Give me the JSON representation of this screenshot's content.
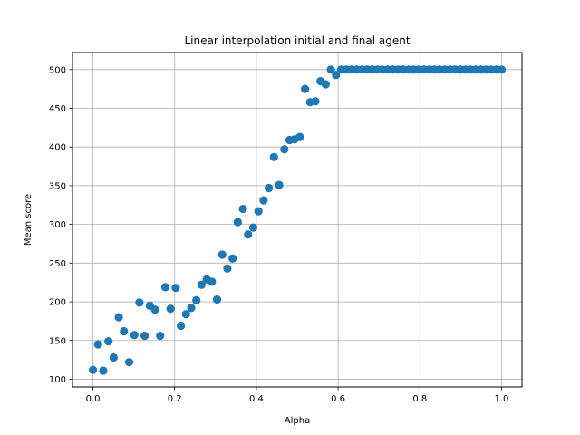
{
  "chart_data": {
    "type": "scatter",
    "title": "Linear interpolation initial and final agent",
    "xlabel": "Alpha",
    "ylabel": "Mean score",
    "xlim": [
      -0.05,
      1.05
    ],
    "ylim": [
      90,
      522
    ],
    "xticks": [
      0.0,
      0.2,
      0.4,
      0.6,
      0.8,
      1.0
    ],
    "xtick_labels": [
      "0.0",
      "0.2",
      "0.4",
      "0.6",
      "0.8",
      "1.0"
    ],
    "yticks": [
      100,
      150,
      200,
      250,
      300,
      350,
      400,
      450,
      500
    ],
    "ytick_labels": [
      "100",
      "150",
      "200",
      "250",
      "300",
      "350",
      "400",
      "450",
      "500"
    ],
    "grid": true,
    "series": [
      {
        "color": "#1f77b4",
        "x": [
          0.0,
          0.0127,
          0.0253,
          0.038,
          0.0506,
          0.0633,
          0.0759,
          0.0886,
          0.1013,
          0.1139,
          0.1266,
          0.1392,
          0.1519,
          0.1646,
          0.1772,
          0.1899,
          0.2025,
          0.2152,
          0.2278,
          0.2405,
          0.2532,
          0.2658,
          0.2785,
          0.2911,
          0.3038,
          0.3165,
          0.3291,
          0.3418,
          0.3544,
          0.3671,
          0.3797,
          0.3924,
          0.4051,
          0.4177,
          0.4304,
          0.443,
          0.4557,
          0.4684,
          0.481,
          0.4937,
          0.5063,
          0.519,
          0.5316,
          0.5443,
          0.557,
          0.5696,
          0.5823,
          0.5949,
          0.6076,
          0.6203,
          0.6329,
          0.6456,
          0.6582,
          0.6709,
          0.6835,
          0.6962,
          0.7089,
          0.7215,
          0.7342,
          0.7468,
          0.7595,
          0.7722,
          0.7848,
          0.7975,
          0.8101,
          0.8228,
          0.8354,
          0.8481,
          0.8608,
          0.8734,
          0.8861,
          0.8987,
          0.9114,
          0.9241,
          0.9367,
          0.9494,
          0.962,
          0.9747,
          0.9873,
          1.0
        ],
        "y": [
          112,
          145,
          111,
          149,
          128,
          180,
          162,
          122,
          157,
          199,
          156,
          195,
          190,
          156,
          219,
          191,
          218,
          169,
          184,
          192,
          202,
          222,
          229,
          226,
          203,
          261,
          243,
          256,
          303,
          320,
          287,
          296,
          317,
          331,
          347,
          387,
          351,
          397,
          409,
          410,
          413,
          475,
          458,
          459,
          485,
          481,
          500,
          493,
          500,
          500,
          500,
          500,
          500,
          500,
          500,
          500,
          500,
          500,
          500,
          500,
          500,
          500,
          500,
          500,
          500,
          500,
          500,
          500,
          500,
          500,
          500,
          500,
          500,
          500,
          500,
          500,
          500,
          500,
          500,
          500
        ]
      }
    ]
  }
}
